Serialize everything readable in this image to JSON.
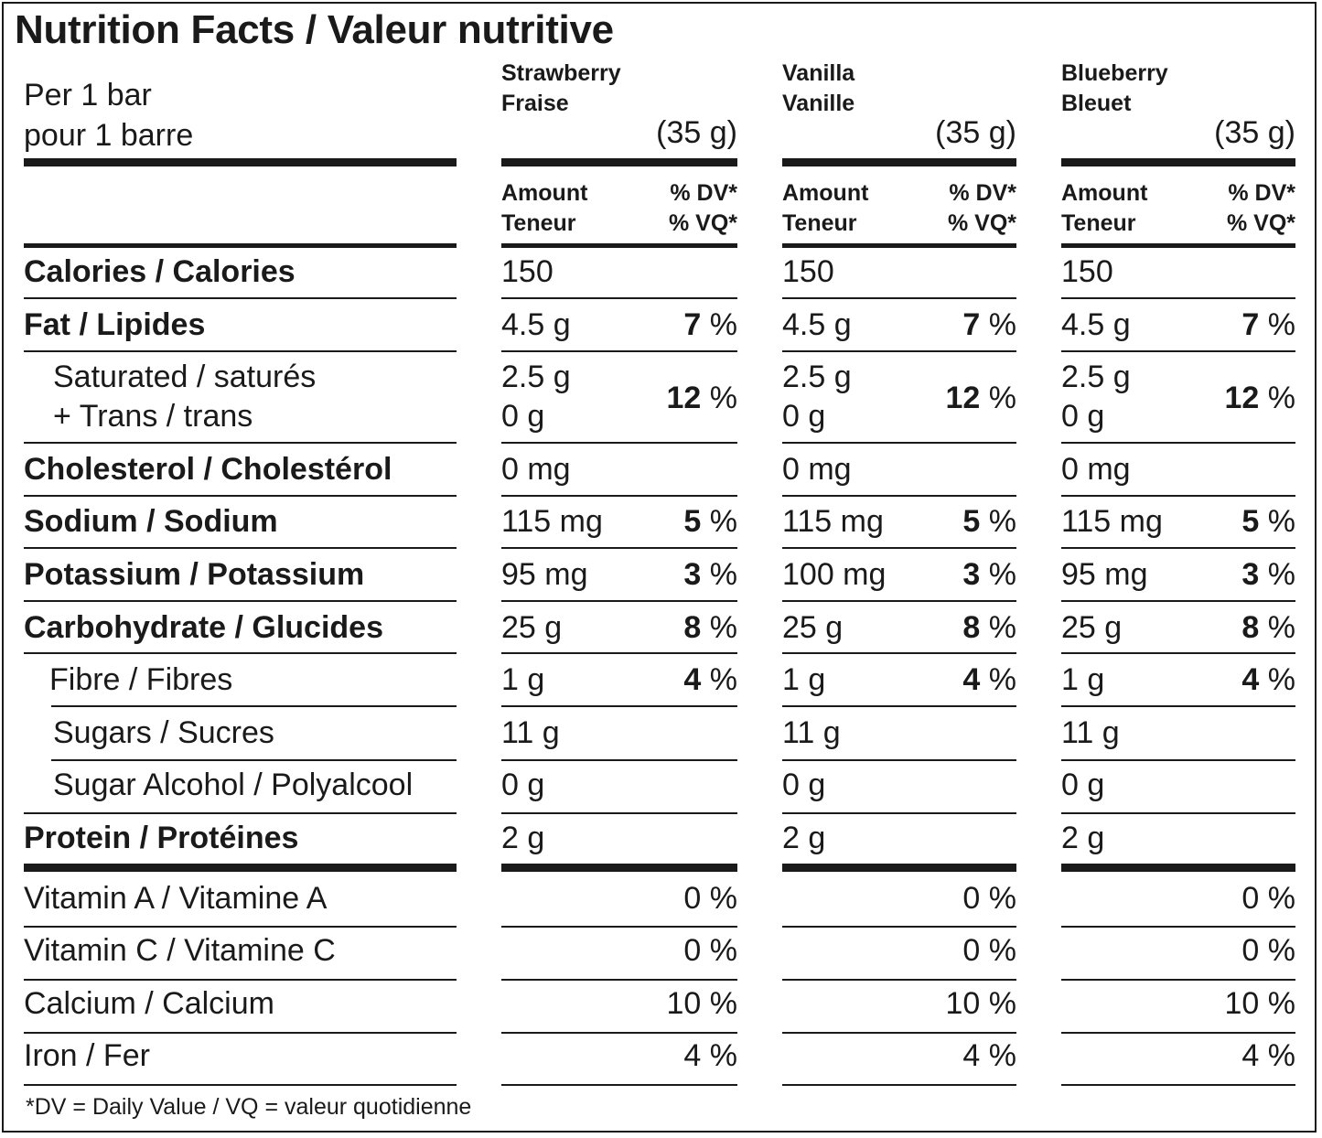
{
  "title": "Nutrition Facts / Valeur nutritive",
  "serving": {
    "line1": "Per 1 bar",
    "line2": "pour 1 barre"
  },
  "flavors": [
    {
      "name_en": "Strawberry",
      "name_fr": "Fraise",
      "grams": "(35 g)"
    },
    {
      "name_en": "Vanilla",
      "name_fr": "Vanille",
      "grams": "(35 g)"
    },
    {
      "name_en": "Blueberry",
      "name_fr": "Bleuet",
      "grams": "(35 g)"
    }
  ],
  "subheader": {
    "amount_en": "Amount",
    "amount_fr": "Teneur",
    "dv_en": "% DV*",
    "dv_fr": "% VQ*"
  },
  "rows": [
    {
      "label": "Calories / Calories",
      "bold": true,
      "values": [
        [
          "150",
          ""
        ],
        [
          "150",
          ""
        ],
        [
          "150",
          ""
        ]
      ]
    },
    {
      "label": "Fat / Lipides",
      "bold": true,
      "values": [
        [
          "4.5 g",
          "7"
        ],
        [
          "4.5 g",
          "7"
        ],
        [
          "4.5 g",
          "7"
        ]
      ]
    },
    {
      "label": "Saturated / saturés",
      "label2": "+ Trans / trans",
      "values": [
        [
          "2.5 g",
          "12",
          "0 g"
        ],
        [
          "2.5 g",
          "12",
          "0 g"
        ],
        [
          "2.5 g",
          "12",
          "0 g"
        ]
      ]
    },
    {
      "label": "Cholesterol / Cholestérol",
      "bold": true,
      "values": [
        [
          "0 mg",
          ""
        ],
        [
          "0 mg",
          ""
        ],
        [
          "0 mg",
          ""
        ]
      ]
    },
    {
      "label": "Sodium / Sodium",
      "bold": true,
      "values": [
        [
          "115 mg",
          "5"
        ],
        [
          "115 mg",
          "5"
        ],
        [
          "115 mg",
          "5"
        ]
      ]
    },
    {
      "label": "Potassium / Potassium",
      "bold": true,
      "values": [
        [
          "95 mg",
          "3"
        ],
        [
          "100 mg",
          "3"
        ],
        [
          "95 mg",
          "3"
        ]
      ]
    },
    {
      "label": "Carbohydrate / Glucides",
      "bold": true,
      "values": [
        [
          "25 g",
          "8"
        ],
        [
          "25 g",
          "8"
        ],
        [
          "25 g",
          "8"
        ]
      ]
    },
    {
      "label": "Fibre / Fibres",
      "values": [
        [
          "1 g",
          "4"
        ],
        [
          "1 g",
          "4"
        ],
        [
          "1 g",
          "4"
        ]
      ]
    },
    {
      "label": "Sugars / Sucres",
      "values": [
        [
          "11 g",
          ""
        ],
        [
          "11 g",
          ""
        ],
        [
          "11 g",
          ""
        ]
      ]
    },
    {
      "label": "Sugar Alcohol / Polyalcool",
      "values": [
        [
          "0 g",
          ""
        ],
        [
          "0 g",
          ""
        ],
        [
          "0 g",
          ""
        ]
      ]
    },
    {
      "label": "Protein / Protéines",
      "bold": true,
      "values": [
        [
          "2 g",
          ""
        ],
        [
          "2 g",
          ""
        ],
        [
          "2 g",
          ""
        ]
      ]
    }
  ],
  "vitamins": [
    {
      "label": "Vitamin A / Vitamine A",
      "values": [
        "0 %",
        "0 %",
        "0 %"
      ]
    },
    {
      "label": "Vitamin C / Vitamine C",
      "values": [
        "0 %",
        "0 %",
        "0 %"
      ]
    },
    {
      "label": "Calcium / Calcium",
      "values": [
        "10 %",
        "10 %",
        "10 %"
      ]
    },
    {
      "label": "Iron / Fer",
      "values": [
        "4 %",
        "4 %",
        "4 %"
      ]
    }
  ],
  "pct_unit": " %",
  "footnote": "*DV = Daily Value / VQ = valeur quotidienne"
}
